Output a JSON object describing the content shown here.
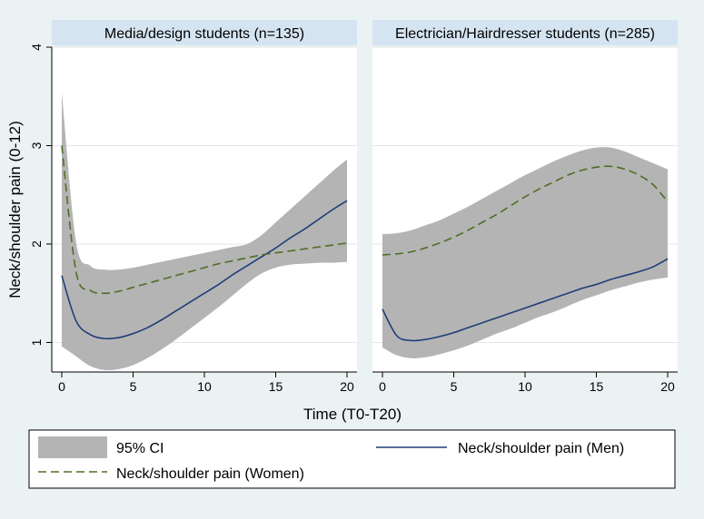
{
  "chart_data": {
    "type": "line",
    "ylabel": "Neck/shoulder pain (0-12)",
    "xlabel": "Time (T0-T20)",
    "xlim": [
      0,
      20
    ],
    "ylim": [
      0.7,
      4.0
    ],
    "xticks": [
      0,
      5,
      10,
      15,
      20
    ],
    "yticks": [
      1,
      2,
      3,
      4
    ],
    "legend": {
      "position": "bottom",
      "ci_label": "95% CI",
      "men_label": "Neck/shoulder pain (Men)",
      "women_label": "Neck/shoulder pain (Women)"
    },
    "colors": {
      "ci": "#b4b4b4",
      "men": "#1f3f78",
      "women": "#4f6e24",
      "panel_title_bg": "#d5e4f1",
      "background": "#eaf2f3"
    },
    "panels": [
      {
        "title": "Media/design students (n=135)",
        "x": [
          0,
          1,
          2,
          3,
          4,
          5,
          6,
          7,
          8,
          9,
          10,
          11,
          12,
          13,
          14,
          15,
          16,
          17,
          18,
          19,
          20
        ],
        "women": [
          3.0,
          1.72,
          1.53,
          1.5,
          1.52,
          1.56,
          1.6,
          1.64,
          1.68,
          1.72,
          1.76,
          1.8,
          1.83,
          1.86,
          1.89,
          1.91,
          1.93,
          1.95,
          1.97,
          1.99,
          2.01
        ],
        "men": [
          1.68,
          1.22,
          1.08,
          1.04,
          1.05,
          1.09,
          1.15,
          1.23,
          1.32,
          1.41,
          1.5,
          1.59,
          1.69,
          1.78,
          1.87,
          1.96,
          2.06,
          2.15,
          2.25,
          2.35,
          2.44
        ],
        "ci_upper": [
          3.54,
          2.02,
          1.78,
          1.74,
          1.74,
          1.76,
          1.79,
          1.82,
          1.85,
          1.88,
          1.91,
          1.94,
          1.97,
          2.0,
          2.09,
          2.22,
          2.35,
          2.48,
          2.61,
          2.74,
          2.86
        ],
        "ci_lower": [
          0.96,
          0.86,
          0.76,
          0.72,
          0.73,
          0.77,
          0.84,
          0.93,
          1.03,
          1.14,
          1.25,
          1.36,
          1.48,
          1.6,
          1.7,
          1.76,
          1.79,
          1.8,
          1.81,
          1.81,
          1.82
        ]
      },
      {
        "title": "Electrician/Hairdresser students (n=285)",
        "x": [
          0,
          1,
          2,
          3,
          4,
          5,
          6,
          7,
          8,
          9,
          10,
          11,
          12,
          13,
          14,
          15,
          16,
          17,
          18,
          19,
          20
        ],
        "women": [
          1.89,
          1.9,
          1.92,
          1.96,
          2.01,
          2.07,
          2.14,
          2.22,
          2.3,
          2.39,
          2.48,
          2.56,
          2.63,
          2.7,
          2.75,
          2.78,
          2.79,
          2.76,
          2.7,
          2.6,
          2.43
        ],
        "men": [
          1.34,
          1.07,
          1.02,
          1.03,
          1.06,
          1.1,
          1.15,
          1.2,
          1.25,
          1.3,
          1.35,
          1.4,
          1.45,
          1.5,
          1.55,
          1.59,
          1.64,
          1.68,
          1.72,
          1.77,
          1.85
        ],
        "ci_upper": [
          2.1,
          2.11,
          2.14,
          2.19,
          2.24,
          2.31,
          2.38,
          2.46,
          2.54,
          2.62,
          2.7,
          2.77,
          2.84,
          2.9,
          2.95,
          2.98,
          2.98,
          2.94,
          2.88,
          2.82,
          2.76
        ],
        "ci_lower": [
          0.95,
          0.87,
          0.84,
          0.85,
          0.88,
          0.92,
          0.97,
          1.03,
          1.09,
          1.14,
          1.2,
          1.26,
          1.31,
          1.37,
          1.43,
          1.48,
          1.53,
          1.57,
          1.61,
          1.64,
          1.66
        ]
      }
    ]
  }
}
